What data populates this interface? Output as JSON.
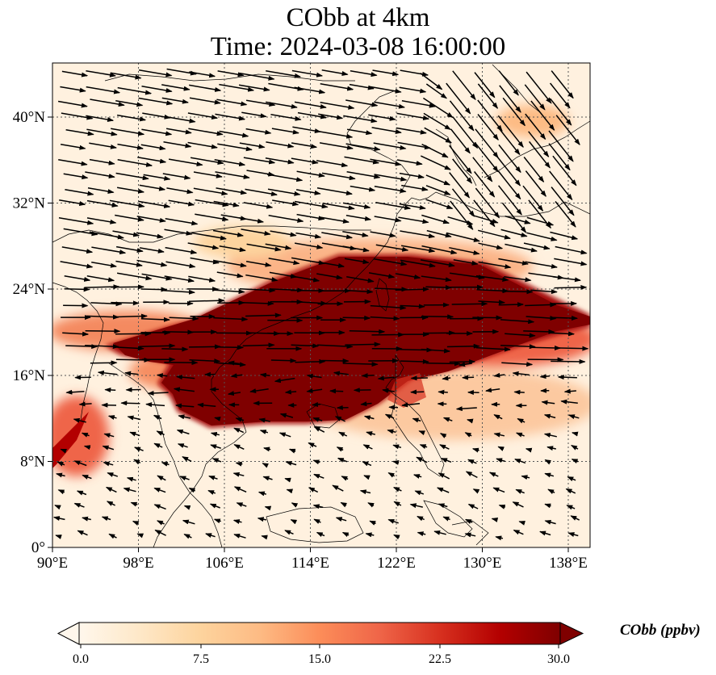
{
  "title": "CObb at 4km",
  "subtitle": "Time: 2024-03-08 16:00:00",
  "map": {
    "lon_range": [
      90,
      140
    ],
    "lat_range": [
      0,
      45
    ],
    "lon_ticks": [
      "90°E",
      "98°E",
      "106°E",
      "114°E",
      "122°E",
      "130°E",
      "138°E"
    ],
    "lat_ticks": [
      "0°",
      "8°N",
      "16°N",
      "24°N",
      "32°N",
      "40°N"
    ],
    "gridlines": true,
    "variable": "CObb",
    "level": "4km",
    "vectors": "wind"
  },
  "colorbar": {
    "label": "CObb (ppbv)",
    "ticks": [
      "0.0",
      "7.5",
      "15.0",
      "22.5",
      "30.0"
    ],
    "range": [
      0,
      30
    ],
    "extend": "both",
    "colormap": "OrRd",
    "colors": [
      "#fff7ec",
      "#fee8c8",
      "#fdd49e",
      "#fdbb84",
      "#fc8d59",
      "#ef6548",
      "#d7301f",
      "#b30000",
      "#7f0000"
    ]
  }
}
